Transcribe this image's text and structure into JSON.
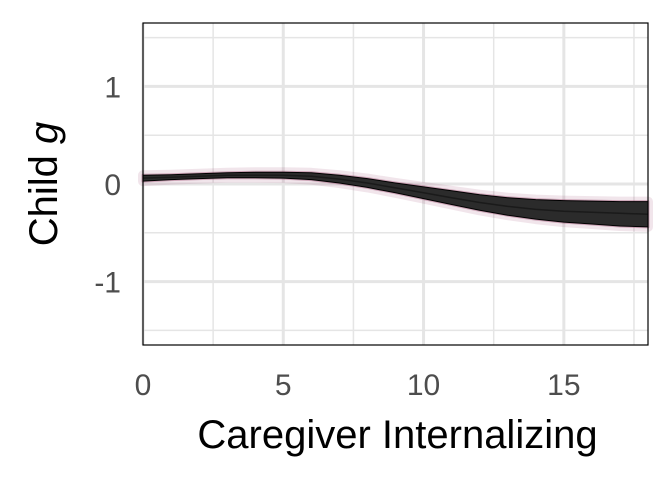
{
  "chart_data": {
    "type": "area",
    "xlabel": "Caregiver Internalizing",
    "ylabel": {
      "text": "Child ",
      "italic": "g"
    },
    "xlim": [
      0,
      18
    ],
    "ylim": [
      -1.65,
      1.65
    ],
    "x_ticks": [
      0,
      5,
      10,
      15
    ],
    "x_tick_labels": [
      "0",
      "5",
      "10",
      "15"
    ],
    "y_ticks": [
      -1,
      0,
      1
    ],
    "y_tick_labels": [
      "-1",
      "0",
      "1"
    ],
    "x_minor_ticks": [
      2.5,
      7.5,
      12.5,
      17.5
    ],
    "y_minor_ticks": [
      -1.5,
      -0.5,
      0.5,
      1.5
    ],
    "grid": true,
    "series": [
      {
        "x": [
          0,
          1,
          2,
          3,
          4,
          5,
          6,
          7,
          8,
          9,
          10,
          11,
          12,
          13,
          14,
          15,
          16,
          17,
          18
        ],
        "y": [
          0.06,
          0.07,
          0.08,
          0.09,
          0.09,
          0.09,
          0.08,
          0.05,
          0.01,
          -0.04,
          -0.09,
          -0.14,
          -0.19,
          -0.23,
          -0.26,
          -0.28,
          -0.29,
          -0.3,
          -0.31
        ],
        "lower": [
          0.03,
          0.045,
          0.055,
          0.065,
          0.065,
          0.06,
          0.045,
          0.01,
          -0.035,
          -0.09,
          -0.15,
          -0.21,
          -0.27,
          -0.32,
          -0.36,
          -0.39,
          -0.41,
          -0.43,
          -0.44
        ],
        "upper": [
          0.09,
          0.095,
          0.105,
          0.115,
          0.12,
          0.12,
          0.115,
          0.09,
          0.055,
          0.01,
          -0.03,
          -0.07,
          -0.11,
          -0.14,
          -0.16,
          -0.17,
          -0.175,
          -0.18,
          -0.18
        ]
      }
    ],
    "colors": {
      "band": "#2b2b2b",
      "halo": "#8c2d5a",
      "edge": "#000000",
      "grid": "#e5e5e5",
      "panel_border": "#000000"
    }
  }
}
